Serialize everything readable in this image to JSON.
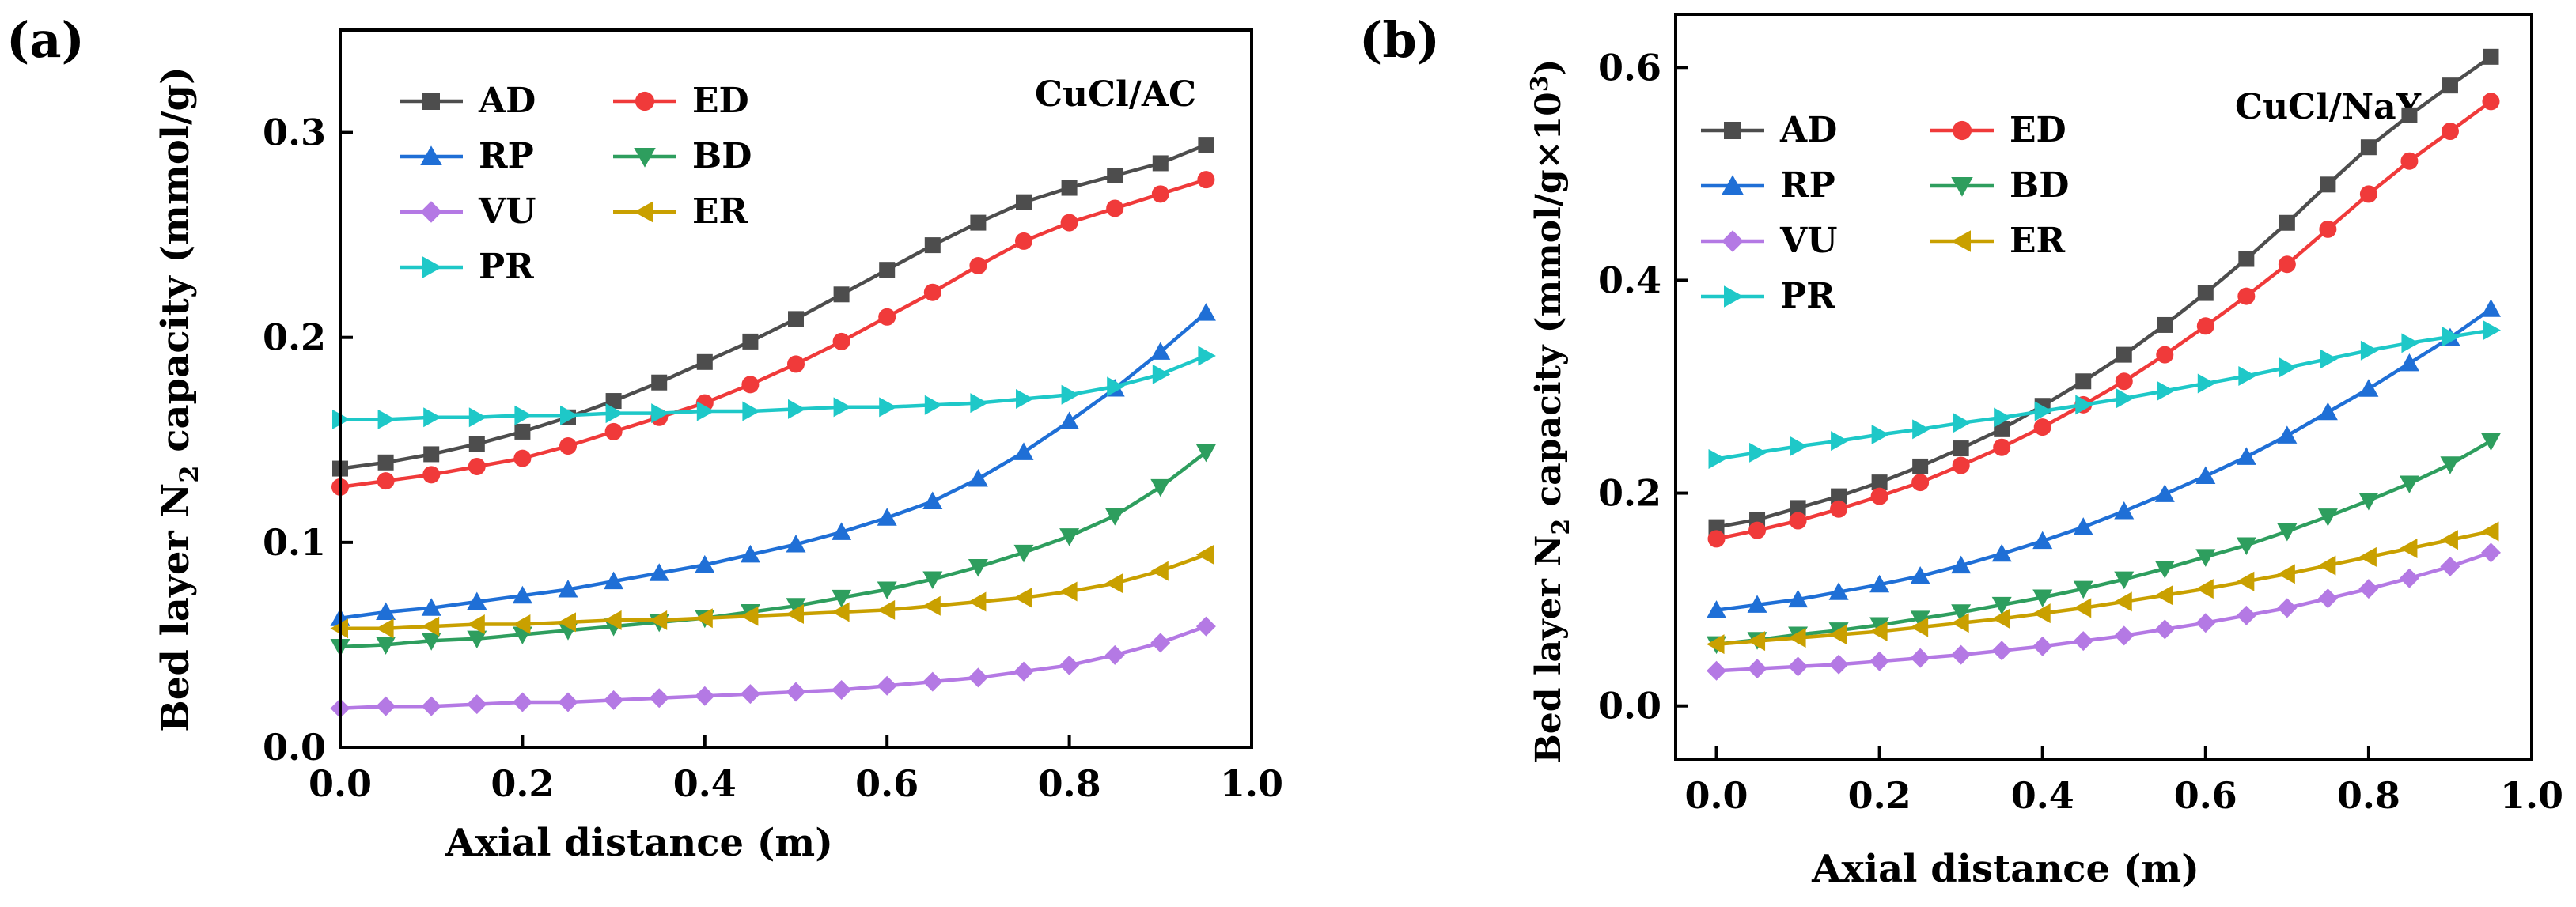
{
  "chart_data": [
    {
      "panel_label": "(a)",
      "type": "line",
      "annotation": "CuCl/AC",
      "xlabel": "Axial distance (m)",
      "ylabel_main": "Bed layer N",
      "ylabel_sub": "2",
      "ylabel_tail": " capacity (mmol/g)",
      "xlim": [
        0,
        1.0
      ],
      "ylim": [
        0,
        0.35
      ],
      "xticks": [
        0.0,
        0.2,
        0.4,
        0.6,
        0.8,
        1.0
      ],
      "xtick_labels": [
        "0.0",
        "0.2",
        "0.4",
        "0.6",
        "0.8",
        "1.0"
      ],
      "yticks": [
        0.0,
        0.1,
        0.2,
        0.3
      ],
      "ytick_labels": [
        "0.0",
        "0.1",
        "0.2",
        "0.3"
      ],
      "x": [
        0,
        0.05,
        0.1,
        0.15,
        0.2,
        0.25,
        0.3,
        0.35,
        0.4,
        0.45,
        0.5,
        0.55,
        0.6,
        0.65,
        0.7,
        0.75,
        0.8,
        0.85,
        0.9,
        0.95
      ],
      "series": [
        {
          "name": "AD",
          "color": "#4d4d4d",
          "marker": "square",
          "values": [
            0.136,
            0.139,
            0.143,
            0.148,
            0.154,
            0.161,
            0.169,
            0.178,
            0.188,
            0.198,
            0.209,
            0.221,
            0.233,
            0.245,
            0.256,
            0.266,
            0.273,
            0.279,
            0.285,
            0.294
          ]
        },
        {
          "name": "ED",
          "color": "#f03a3a",
          "marker": "circle",
          "values": [
            0.127,
            0.13,
            0.133,
            0.137,
            0.141,
            0.147,
            0.154,
            0.161,
            0.168,
            0.177,
            0.187,
            0.198,
            0.21,
            0.222,
            0.235,
            0.247,
            0.256,
            0.263,
            0.27,
            0.277
          ]
        },
        {
          "name": "RP",
          "color": "#1f6fd6",
          "marker": "triangle-up",
          "values": [
            0.063,
            0.066,
            0.068,
            0.071,
            0.074,
            0.077,
            0.081,
            0.085,
            0.089,
            0.094,
            0.099,
            0.105,
            0.112,
            0.12,
            0.131,
            0.144,
            0.159,
            0.175,
            0.193,
            0.212
          ]
        },
        {
          "name": "BD",
          "color": "#2e9e5e",
          "marker": "triangle-down",
          "values": [
            0.049,
            0.05,
            0.052,
            0.053,
            0.055,
            0.057,
            0.059,
            0.061,
            0.063,
            0.066,
            0.069,
            0.073,
            0.077,
            0.082,
            0.088,
            0.095,
            0.103,
            0.113,
            0.127,
            0.144
          ]
        },
        {
          "name": "VU",
          "color": "#b479e4",
          "marker": "diamond",
          "values": [
            0.019,
            0.02,
            0.02,
            0.021,
            0.022,
            0.022,
            0.023,
            0.024,
            0.025,
            0.026,
            0.027,
            0.028,
            0.03,
            0.032,
            0.034,
            0.037,
            0.04,
            0.045,
            0.051,
            0.059
          ]
        },
        {
          "name": "ER",
          "color": "#c9a000",
          "marker": "triangle-left",
          "values": [
            0.058,
            0.058,
            0.059,
            0.06,
            0.06,
            0.061,
            0.062,
            0.062,
            0.063,
            0.064,
            0.065,
            0.066,
            0.067,
            0.069,
            0.071,
            0.073,
            0.076,
            0.08,
            0.086,
            0.094
          ]
        },
        {
          "name": "PR",
          "color": "#1ec8c8",
          "marker": "triangle-right",
          "values": [
            0.16,
            0.16,
            0.161,
            0.161,
            0.162,
            0.162,
            0.163,
            0.163,
            0.164,
            0.164,
            0.165,
            0.166,
            0.166,
            0.167,
            0.168,
            0.17,
            0.172,
            0.176,
            0.182,
            0.191
          ]
        }
      ]
    },
    {
      "panel_label": "(b)",
      "type": "line",
      "annotation": "CuCl/NaY",
      "xlabel": "Axial distance (m)",
      "ylabel_main": "Bed layer N",
      "ylabel_sub": "2",
      "ylabel_tail": " capacity (mmol/g×10",
      "ylabel_sup": "3",
      "ylabel_close": ")",
      "xlim": [
        -0.05,
        1.0
      ],
      "ylim": [
        -0.05,
        0.65
      ],
      "xticks": [
        0.0,
        0.2,
        0.4,
        0.6,
        0.8,
        1.0
      ],
      "xtick_labels": [
        "0.0",
        "0.2",
        "0.4",
        "0.6",
        "0.8",
        "1.0"
      ],
      "yticks": [
        0.0,
        0.2,
        0.4,
        0.6
      ],
      "ytick_labels": [
        "0.0",
        "0.2",
        "0.4",
        "0.6"
      ],
      "x": [
        0,
        0.05,
        0.1,
        0.15,
        0.2,
        0.25,
        0.3,
        0.35,
        0.4,
        0.45,
        0.5,
        0.55,
        0.6,
        0.65,
        0.7,
        0.75,
        0.8,
        0.85,
        0.9,
        0.95
      ],
      "series": [
        {
          "name": "AD",
          "color": "#4d4d4d",
          "marker": "square",
          "values": [
            0.168,
            0.175,
            0.186,
            0.197,
            0.21,
            0.225,
            0.242,
            0.26,
            0.282,
            0.305,
            0.33,
            0.358,
            0.388,
            0.42,
            0.454,
            0.49,
            0.525,
            0.555,
            0.583,
            0.61
          ]
        },
        {
          "name": "ED",
          "color": "#f03a3a",
          "marker": "circle",
          "values": [
            0.157,
            0.165,
            0.174,
            0.185,
            0.197,
            0.21,
            0.226,
            0.243,
            0.262,
            0.283,
            0.305,
            0.33,
            0.357,
            0.385,
            0.415,
            0.448,
            0.481,
            0.512,
            0.54,
            0.568
          ]
        },
        {
          "name": "RP",
          "color": "#1f6fd6",
          "marker": "triangle-up",
          "values": [
            0.09,
            0.095,
            0.1,
            0.107,
            0.114,
            0.122,
            0.132,
            0.143,
            0.155,
            0.168,
            0.183,
            0.199,
            0.216,
            0.234,
            0.254,
            0.276,
            0.298,
            0.322,
            0.346,
            0.373
          ]
        },
        {
          "name": "BD",
          "color": "#2e9e5e",
          "marker": "triangle-down",
          "values": [
            0.058,
            0.062,
            0.067,
            0.071,
            0.076,
            0.082,
            0.088,
            0.095,
            0.102,
            0.11,
            0.119,
            0.129,
            0.14,
            0.151,
            0.164,
            0.178,
            0.193,
            0.209,
            0.227,
            0.249
          ]
        },
        {
          "name": "VU",
          "color": "#b479e4",
          "marker": "diamond",
          "values": [
            0.033,
            0.035,
            0.037,
            0.039,
            0.042,
            0.045,
            0.048,
            0.052,
            0.056,
            0.061,
            0.066,
            0.072,
            0.078,
            0.085,
            0.092,
            0.101,
            0.11,
            0.12,
            0.131,
            0.144
          ]
        },
        {
          "name": "ER",
          "color": "#c9a000",
          "marker": "triangle-left",
          "values": [
            0.058,
            0.061,
            0.064,
            0.067,
            0.07,
            0.074,
            0.078,
            0.082,
            0.087,
            0.092,
            0.098,
            0.104,
            0.11,
            0.117,
            0.124,
            0.132,
            0.14,
            0.148,
            0.156,
            0.164
          ]
        },
        {
          "name": "PR",
          "color": "#1ec8c8",
          "marker": "triangle-right",
          "values": [
            0.232,
            0.238,
            0.244,
            0.249,
            0.255,
            0.26,
            0.266,
            0.271,
            0.277,
            0.283,
            0.289,
            0.296,
            0.303,
            0.31,
            0.318,
            0.326,
            0.334,
            0.341,
            0.347,
            0.353
          ]
        }
      ]
    }
  ]
}
